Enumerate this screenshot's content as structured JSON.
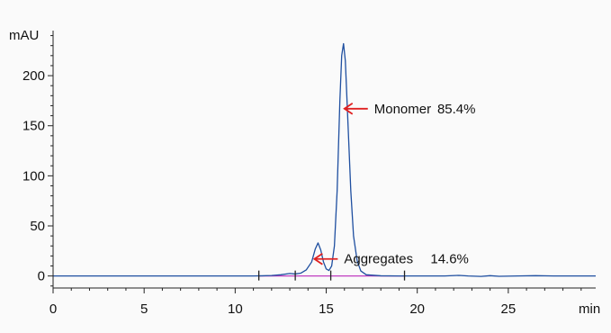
{
  "chart_data": {
    "type": "line",
    "ylabel": "mAU",
    "xlabel": "min",
    "xlim": [
      0,
      29.8
    ],
    "ylim": [
      -12,
      245
    ],
    "x_ticks": [
      0,
      5,
      10,
      15,
      20,
      25
    ],
    "y_ticks": [
      0,
      50,
      100,
      150,
      200
    ],
    "x_minor_step": 1,
    "y_minor_step": 10,
    "series": [
      {
        "color": "#1f4fa0",
        "points": [
          [
            0,
            0
          ],
          [
            11.0,
            0
          ],
          [
            11.5,
            0.2
          ],
          [
            12.0,
            0.5
          ],
          [
            12.5,
            1.2
          ],
          [
            13.0,
            2.5
          ],
          [
            13.3,
            2.0
          ],
          [
            13.6,
            2.8
          ],
          [
            13.9,
            6.0
          ],
          [
            14.2,
            14.0
          ],
          [
            14.4,
            27.0
          ],
          [
            14.55,
            33.0
          ],
          [
            14.7,
            26.0
          ],
          [
            14.85,
            14.0
          ],
          [
            15.0,
            7.0
          ],
          [
            15.15,
            5.5
          ],
          [
            15.3,
            10.0
          ],
          [
            15.45,
            30.0
          ],
          [
            15.6,
            85.0
          ],
          [
            15.75,
            175.0
          ],
          [
            15.85,
            220.0
          ],
          [
            15.95,
            232.0
          ],
          [
            16.05,
            215.0
          ],
          [
            16.2,
            150.0
          ],
          [
            16.35,
            85.0
          ],
          [
            16.5,
            40.0
          ],
          [
            16.7,
            15.0
          ],
          [
            16.9,
            5.0
          ],
          [
            17.2,
            1.2
          ],
          [
            18.0,
            0.2
          ],
          [
            19.0,
            0
          ],
          [
            21.5,
            0
          ],
          [
            22.3,
            0.6
          ],
          [
            22.8,
            0
          ],
          [
            23.5,
            -0.4
          ],
          [
            24.0,
            0.3
          ],
          [
            24.5,
            -0.3
          ],
          [
            25.5,
            0
          ],
          [
            26.5,
            0.3
          ],
          [
            27.5,
            0
          ],
          [
            29.8,
            0
          ]
        ]
      }
    ],
    "baseline": {
      "color": "#c03cc0",
      "x_start": 11.3,
      "x_end": 19.3,
      "y": 0
    },
    "integration_marks": [
      11.3,
      13.3,
      15.25,
      19.3
    ],
    "annotations": [
      {
        "label": "Monomer",
        "value": "85.4%",
        "x": 16.0,
        "y": 167
      },
      {
        "label": "Aggregates",
        "value": "14.6%",
        "x": 14.35,
        "y": 17
      }
    ],
    "annotation_color": "#e02020",
    "grid": false
  }
}
